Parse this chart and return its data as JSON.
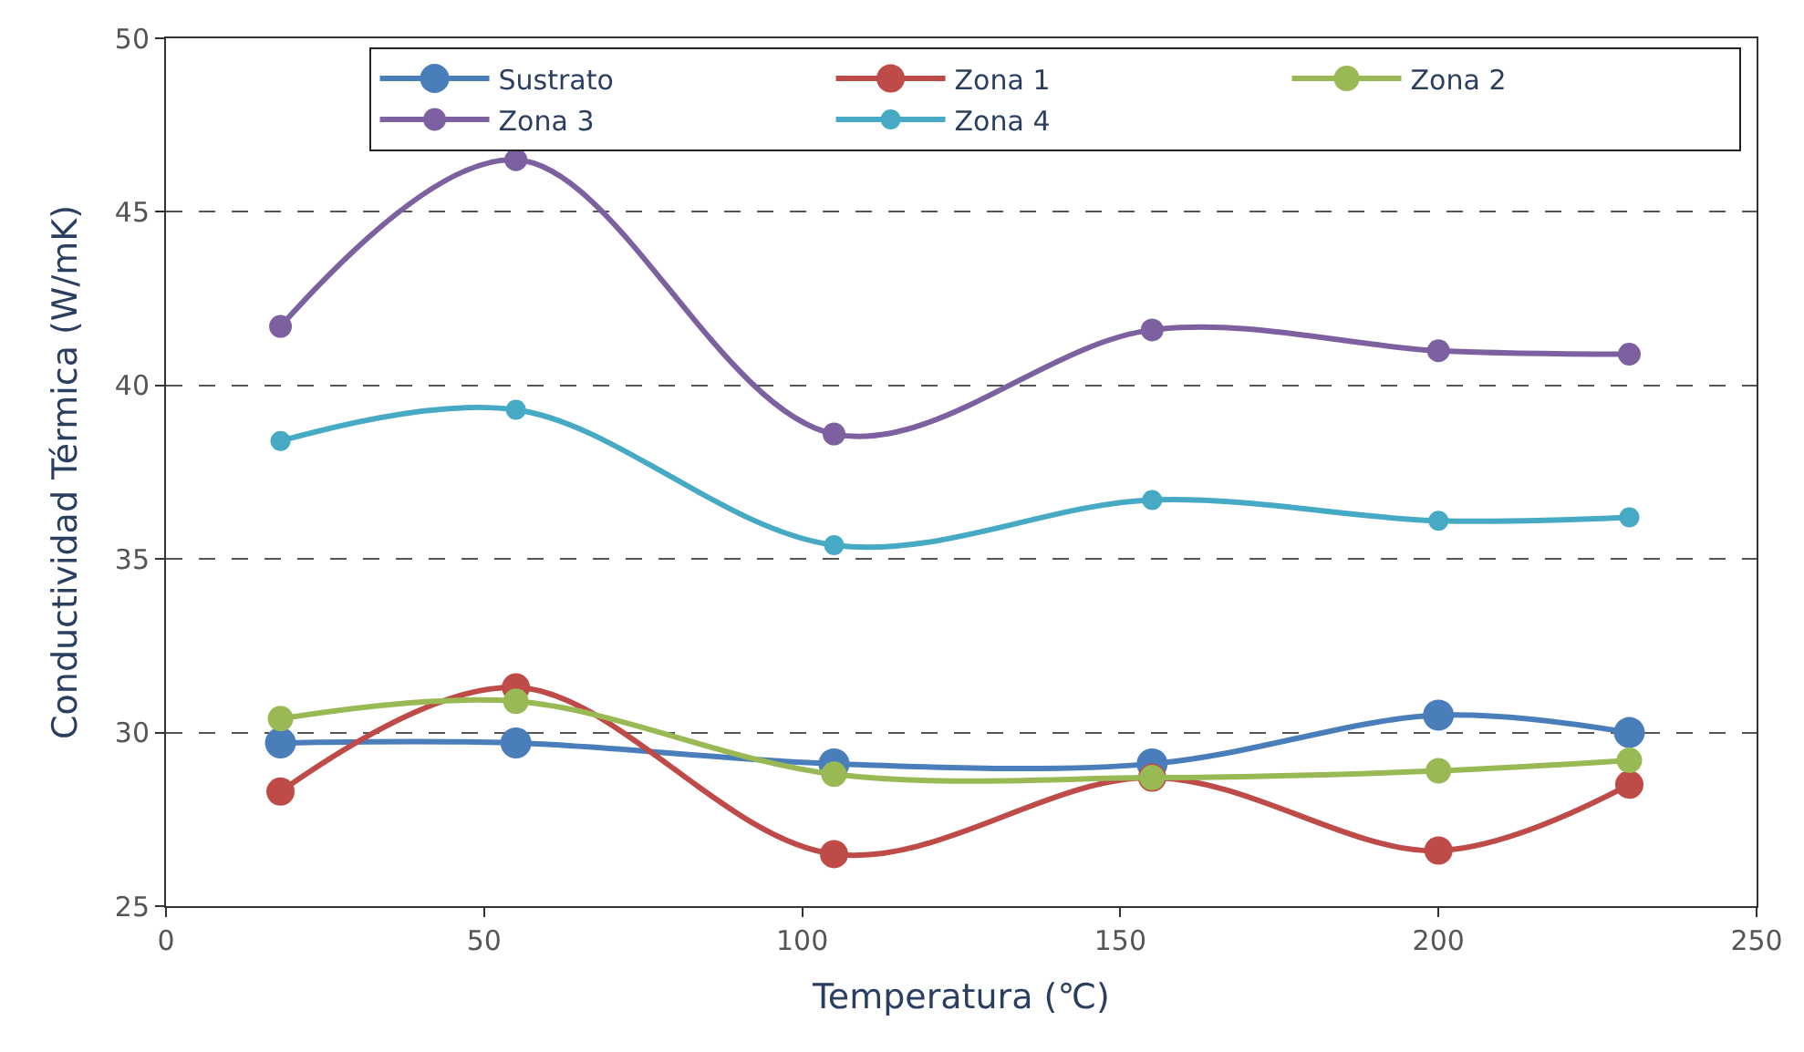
{
  "chart_data": {
    "type": "line",
    "xlabel": "Temperatura (℃)",
    "ylabel": "Conductividad Térmica (W/mK)",
    "x": [
      18,
      55,
      105,
      155,
      200,
      230
    ],
    "series": [
      {
        "name": "Sustrato",
        "color": "#4a7ebb",
        "values": [
          29.7,
          29.7,
          29.1,
          29.1,
          30.5,
          30.0
        ]
      },
      {
        "name": "Zona 1",
        "color": "#be4b48",
        "values": [
          28.3,
          31.3,
          26.5,
          28.7,
          26.6,
          28.5
        ]
      },
      {
        "name": "Zona 2",
        "color": "#98b954",
        "values": [
          30.4,
          30.9,
          28.8,
          28.7,
          28.9,
          29.2
        ]
      },
      {
        "name": "Zona 3",
        "color": "#7d60a0",
        "values": [
          41.7,
          46.5,
          38.6,
          41.6,
          41.0,
          40.9
        ]
      },
      {
        "name": "Zona 4",
        "color": "#46aac5",
        "values": [
          38.4,
          39.3,
          35.4,
          36.7,
          36.1,
          36.2
        ]
      }
    ],
    "xlim": [
      0,
      250
    ],
    "xticks": [
      0,
      50,
      100,
      150,
      200,
      250
    ],
    "ylim": [
      25,
      50
    ],
    "yticks": [
      25,
      30,
      35,
      40,
      45,
      50
    ],
    "grid": "y",
    "legend": "top right",
    "marker": "circle",
    "line_style": "solid"
  }
}
